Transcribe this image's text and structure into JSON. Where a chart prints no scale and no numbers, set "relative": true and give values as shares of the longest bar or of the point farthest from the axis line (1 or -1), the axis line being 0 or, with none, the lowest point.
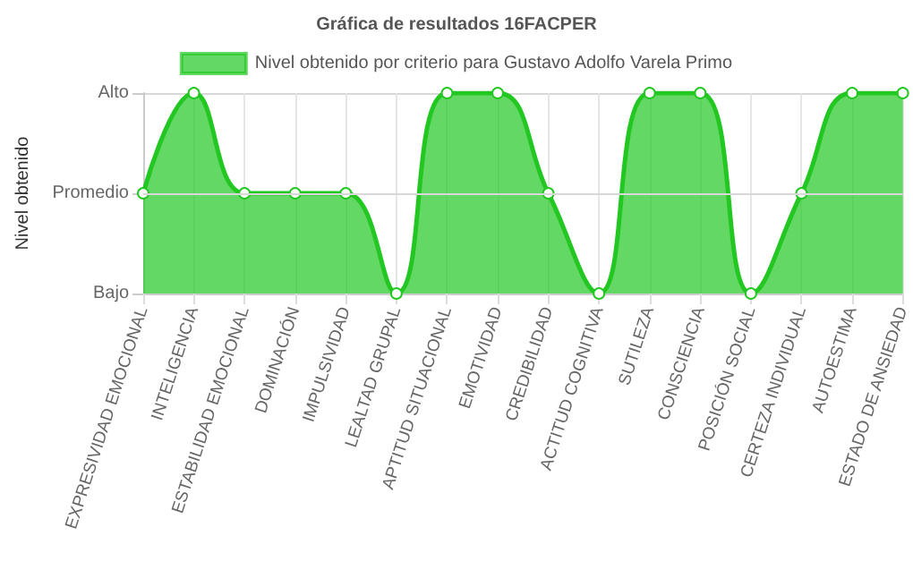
{
  "chart_data": {
    "type": "area",
    "title": "Gráfica de resultados 16FACPER",
    "ylabel": "Nivel obtenido",
    "categories": [
      "EXPRESIVIDAD EMOCIONAL",
      "INTELIGENCIA",
      "ESTABILIDAD EMOCIONAL",
      "DOMINACIÓN",
      "IMPULSIVIDAD",
      "LEALTAD GRUPAL",
      "APTITUD SITUACIONAL",
      "EMOTIVIDAD",
      "CREDIBILIDAD",
      "ACTITUD COGNITIVA",
      "SUTILEZA",
      "CONSCIENCIA",
      "POSICIÓN SOCIAL",
      "CERTEZA INDIVIDUAL",
      "AUTOESTIMA",
      "ESTADO DE ANSIEDAD"
    ],
    "series": [
      {
        "name": "Nivel obtenido por criterio para Gustavo Adolfo Varela Primo",
        "color": "#22c722",
        "values": [
          0.5,
          1,
          0.5,
          0.5,
          0.5,
          0,
          1,
          1,
          0.5,
          0,
          1,
          1,
          0,
          0.5,
          1,
          1
        ]
      }
    ],
    "relative": true,
    "y_categories": [
      "Alto",
      "Promedio",
      "Bajo"
    ],
    "ref_lines": [
      {
        "axis": "y",
        "value": 0.5,
        "color": "#d8d8d8"
      }
    ],
    "grid": true,
    "legend": "top",
    "marker": "circle"
  }
}
